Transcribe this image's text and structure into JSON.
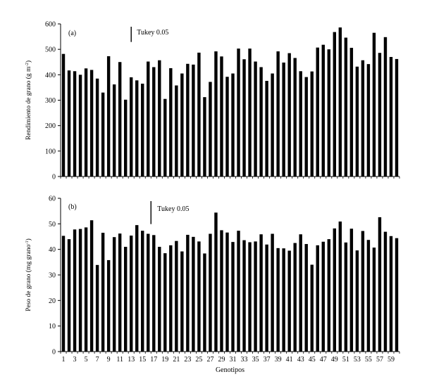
{
  "chart_data": [
    {
      "type": "bar",
      "panel_label": "(a)",
      "title": "",
      "xlabel": "",
      "ylabel": "Rendimiento de grano (g m",
      "ylabel_sup": "-2",
      "ylabel_close": ")",
      "ylim": [
        0,
        600
      ],
      "yticks": [
        0,
        100,
        200,
        300,
        400,
        500,
        600
      ],
      "tukey_label": "Tukey 0.05",
      "tukey_value": 60,
      "tukey_at": 12.5,
      "categories": [
        1,
        2,
        3,
        4,
        5,
        6,
        7,
        8,
        9,
        10,
        11,
        12,
        13,
        14,
        15,
        16,
        17,
        18,
        19,
        20,
        21,
        22,
        23,
        24,
        25,
        26,
        27,
        28,
        29,
        30,
        31,
        32,
        33,
        34,
        35,
        36,
        37,
        38,
        39,
        40,
        41,
        42,
        43,
        44,
        45,
        46,
        47,
        48,
        49,
        50,
        51,
        52,
        53,
        54,
        55,
        56,
        57,
        58,
        59,
        60
      ],
      "values": [
        482,
        417,
        414,
        400,
        425,
        419,
        385,
        330,
        473,
        362,
        450,
        302,
        390,
        378,
        365,
        452,
        430,
        457,
        305,
        426,
        358,
        405,
        443,
        440,
        487,
        312,
        372,
        492,
        472,
        392,
        405,
        503,
        461,
        503,
        452,
        430,
        376,
        405,
        492,
        448,
        485,
        466,
        414,
        391,
        413,
        507,
        518,
        500,
        568,
        586,
        546,
        506,
        432,
        457,
        442,
        565,
        486,
        548,
        470,
        462
      ],
      "legend": []
    },
    {
      "type": "bar",
      "panel_label": "(b)",
      "title": "",
      "xlabel": "Genotipos",
      "ylabel": "Peso de grano (mg grano",
      "ylabel_sup": "-1",
      "ylabel_close": ")",
      "ylim": [
        0,
        60
      ],
      "yticks": [
        0,
        10,
        20,
        30,
        40,
        50,
        60
      ],
      "tukey_label": "Tukey 0.05",
      "tukey_value": 9,
      "tukey_at": 16,
      "categories": [
        1,
        2,
        3,
        4,
        5,
        6,
        7,
        8,
        9,
        10,
        11,
        12,
        13,
        14,
        15,
        16,
        17,
        18,
        19,
        20,
        21,
        22,
        23,
        24,
        25,
        26,
        27,
        28,
        29,
        30,
        31,
        32,
        33,
        34,
        35,
        36,
        37,
        38,
        39,
        40,
        41,
        42,
        43,
        44,
        45,
        46,
        47,
        48,
        49,
        50,
        51,
        52,
        53,
        54,
        55,
        56,
        57,
        58,
        59,
        60
      ],
      "tick_labels_shown": [
        1,
        3,
        5,
        7,
        9,
        11,
        13,
        15,
        17,
        19,
        21,
        23,
        25,
        27,
        29,
        31,
        33,
        35,
        37,
        39,
        41,
        43,
        45,
        47,
        49,
        51,
        53,
        55,
        57,
        59
      ],
      "values": [
        45.3,
        44.0,
        47.8,
        48.0,
        48.6,
        51.4,
        33.9,
        46.5,
        35.8,
        44.8,
        46.2,
        41.0,
        45.4,
        49.5,
        47.3,
        46.1,
        45.6,
        41.0,
        38.5,
        41.6,
        43.3,
        39.2,
        45.7,
        44.9,
        43.1,
        38.4,
        46.1,
        54.4,
        47.5,
        46.6,
        42.9,
        47.3,
        43.6,
        42.8,
        43.1,
        45.9,
        41.9,
        46.1,
        40.5,
        40.4,
        39.5,
        42.5,
        45.9,
        42.1,
        34.0,
        41.6,
        43.0,
        44.0,
        48.2,
        50.9,
        42.7,
        48.1,
        39.6,
        47.2,
        43.7,
        40.7,
        52.6,
        46.9,
        45.2,
        44.4
      ],
      "legend": []
    }
  ]
}
